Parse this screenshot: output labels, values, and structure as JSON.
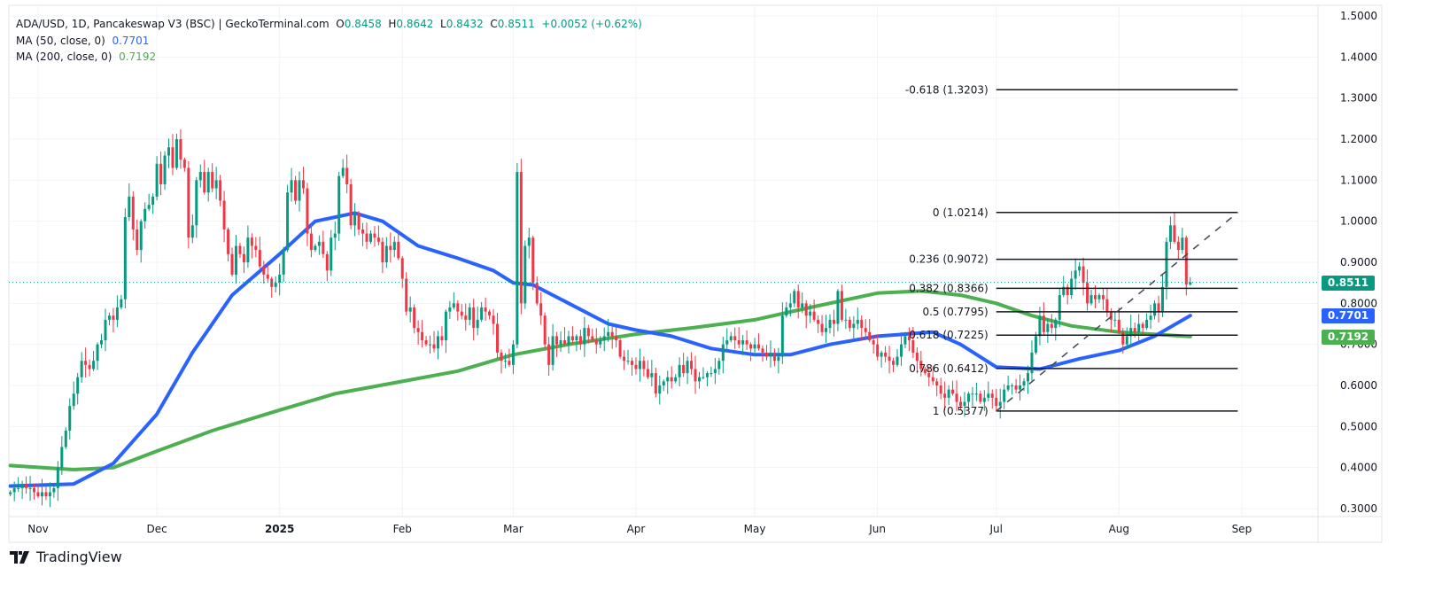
{
  "header": {
    "title": "ADA/USD, 1D, Pancakeswap V3 (BSC) | GeckoTerminal.com",
    "o_label": "O",
    "o": "0.8458",
    "h_label": "H",
    "h": "0.8642",
    "l_label": "L",
    "l": "0.8432",
    "c_label": "C",
    "c": "0.8511",
    "change": "+0.0052 (+0.62%)",
    "ma50_label": "MA (50, close, 0)",
    "ma50_value": "0.7701",
    "ma200_label": "MA (200, close, 0)",
    "ma200_value": "0.7192"
  },
  "branding": {
    "logo_text": "TradingView"
  },
  "colors": {
    "up": "#089981",
    "down": "#f23645",
    "ma50": "#2962ff",
    "ma200": "#4caf50",
    "fib": "#131722",
    "last_price": "#089981"
  },
  "price_badges": {
    "last": "0.8511",
    "ma50": "0.7701",
    "ma200": "0.7192"
  },
  "chart_data": {
    "type": "candlestick",
    "start_date": "2024-10-25",
    "last_candle": {
      "open": 0.8458,
      "high": 0.8642,
      "low": 0.8432,
      "close": 0.8511
    },
    "closes": [
      0.34,
      0.35,
      0.35,
      0.36,
      0.35,
      0.35,
      0.34,
      0.33,
      0.34,
      0.33,
      0.34,
      0.35,
      0.4,
      0.45,
      0.49,
      0.55,
      0.58,
      0.62,
      0.66,
      0.65,
      0.64,
      0.66,
      0.7,
      0.71,
      0.76,
      0.77,
      0.76,
      0.79,
      0.81,
      1.01,
      1.06,
      0.98,
      0.93,
      1.0,
      1.03,
      1.04,
      1.06,
      1.14,
      1.09,
      1.16,
      1.18,
      1.13,
      1.2,
      1.15,
      1.13,
      0.96,
      0.99,
      1.1,
      1.12,
      1.07,
      1.12,
      1.08,
      1.1,
      1.05,
      0.98,
      0.92,
      0.87,
      0.94,
      0.92,
      0.9,
      0.96,
      0.94,
      0.93,
      0.89,
      0.87,
      0.86,
      0.84,
      0.85,
      0.87,
      0.93,
      1.07,
      1.1,
      1.05,
      1.1,
      1.08,
      0.97,
      0.93,
      0.94,
      0.95,
      0.92,
      0.88,
      0.96,
      0.97,
      1.11,
      1.13,
      1.09,
      0.99,
      1.02,
      0.98,
      0.97,
      0.95,
      0.97,
      0.96,
      0.95,
      0.9,
      0.94,
      0.93,
      0.95,
      0.91,
      0.86,
      0.78,
      0.79,
      0.74,
      0.73,
      0.71,
      0.7,
      0.7,
      0.69,
      0.72,
      0.71,
      0.78,
      0.79,
      0.8,
      0.78,
      0.77,
      0.76,
      0.79,
      0.74,
      0.76,
      0.79,
      0.78,
      0.77,
      0.75,
      0.68,
      0.66,
      0.66,
      0.65,
      0.7,
      1.12,
      0.8,
      0.94,
      0.96,
      0.85,
      0.8,
      0.77,
      0.7,
      0.65,
      0.72,
      0.7,
      0.71,
      0.7,
      0.72,
      0.71,
      0.72,
      0.7,
      0.74,
      0.72,
      0.71,
      0.7,
      0.71,
      0.72,
      0.73,
      0.72,
      0.71,
      0.67,
      0.66,
      0.66,
      0.65,
      0.64,
      0.66,
      0.64,
      0.62,
      0.63,
      0.58,
      0.6,
      0.61,
      0.62,
      0.61,
      0.62,
      0.65,
      0.63,
      0.66,
      0.64,
      0.61,
      0.62,
      0.62,
      0.63,
      0.63,
      0.64,
      0.66,
      0.7,
      0.71,
      0.72,
      0.71,
      0.7,
      0.71,
      0.7,
      0.69,
      0.7,
      0.69,
      0.68,
      0.67,
      0.68,
      0.66,
      0.67,
      0.77,
      0.79,
      0.8,
      0.83,
      0.79,
      0.8,
      0.77,
      0.78,
      0.76,
      0.75,
      0.73,
      0.74,
      0.76,
      0.75,
      0.83,
      0.76,
      0.76,
      0.74,
      0.75,
      0.76,
      0.74,
      0.73,
      0.71,
      0.7,
      0.67,
      0.68,
      0.67,
      0.66,
      0.65,
      0.67,
      0.7,
      0.72,
      0.71,
      0.68,
      0.66,
      0.64,
      0.63,
      0.62,
      0.61,
      0.6,
      0.58,
      0.57,
      0.59,
      0.58,
      0.56,
      0.55,
      0.56,
      0.58,
      0.58,
      0.58,
      0.56,
      0.57,
      0.58,
      0.57,
      0.55,
      0.56,
      0.59,
      0.6,
      0.6,
      0.59,
      0.6,
      0.61,
      0.63,
      0.68,
      0.72,
      0.77,
      0.73,
      0.75,
      0.74,
      0.76,
      0.82,
      0.84,
      0.82,
      0.86,
      0.88,
      0.89,
      0.85,
      0.8,
      0.82,
      0.81,
      0.82,
      0.81,
      0.78,
      0.76,
      0.76,
      0.73,
      0.7,
      0.72,
      0.74,
      0.73,
      0.75,
      0.74,
      0.76,
      0.77,
      0.8,
      0.78,
      0.84,
      0.95,
      0.99,
      0.95,
      0.93,
      0.96,
      0.8458,
      0.8511
    ],
    "ma50": [
      [
        "2024-10-25",
        0.355
      ],
      [
        "2024-11-10",
        0.36
      ],
      [
        "2024-11-20",
        0.41
      ],
      [
        "2024-12-01",
        0.53
      ],
      [
        "2024-12-10",
        0.68
      ],
      [
        "2024-12-20",
        0.82
      ],
      [
        "2025-01-01",
        0.92
      ],
      [
        "2025-01-10",
        1.0
      ],
      [
        "2025-01-20",
        1.02
      ],
      [
        "2025-01-27",
        1.0
      ],
      [
        "2025-02-05",
        0.94
      ],
      [
        "2025-02-15",
        0.91
      ],
      [
        "2025-02-24",
        0.88
      ],
      [
        "2025-03-01",
        0.85
      ],
      [
        "2025-03-06",
        0.845
      ],
      [
        "2025-03-15",
        0.8
      ],
      [
        "2025-03-25",
        0.75
      ],
      [
        "2025-04-01",
        0.735
      ],
      [
        "2025-04-10",
        0.72
      ],
      [
        "2025-04-20",
        0.69
      ],
      [
        "2025-05-01",
        0.675
      ],
      [
        "2025-05-10",
        0.675
      ],
      [
        "2025-05-20",
        0.7
      ],
      [
        "2025-06-01",
        0.72
      ],
      [
        "2025-06-15",
        0.73
      ],
      [
        "2025-06-22",
        0.7
      ],
      [
        "2025-07-01",
        0.645
      ],
      [
        "2025-07-12",
        0.64
      ],
      [
        "2025-07-22",
        0.665
      ],
      [
        "2025-08-01",
        0.685
      ],
      [
        "2025-08-10",
        0.72
      ],
      [
        "2025-08-19",
        0.7701
      ]
    ],
    "ma200": [
      [
        "2024-10-25",
        0.405
      ],
      [
        "2024-11-10",
        0.395
      ],
      [
        "2024-11-20",
        0.4
      ],
      [
        "2024-12-01",
        0.44
      ],
      [
        "2024-12-15",
        0.49
      ],
      [
        "2025-01-01",
        0.54
      ],
      [
        "2025-01-15",
        0.58
      ],
      [
        "2025-02-01",
        0.61
      ],
      [
        "2025-02-15",
        0.635
      ],
      [
        "2025-03-01",
        0.675
      ],
      [
        "2025-03-15",
        0.7
      ],
      [
        "2025-04-01",
        0.725
      ],
      [
        "2025-04-15",
        0.74
      ],
      [
        "2025-05-01",
        0.76
      ],
      [
        "2025-05-15",
        0.79
      ],
      [
        "2025-06-01",
        0.825
      ],
      [
        "2025-06-12",
        0.83
      ],
      [
        "2025-06-22",
        0.82
      ],
      [
        "2025-07-01",
        0.8
      ],
      [
        "2025-07-10",
        0.77
      ],
      [
        "2025-07-20",
        0.745
      ],
      [
        "2025-08-01",
        0.73
      ],
      [
        "2025-08-19",
        0.7192
      ]
    ],
    "fibonacci": {
      "start_date": "2025-07-01",
      "end_date": "2025-08-31",
      "trend_from": [
        "2025-07-01",
        0.5377
      ],
      "trend_to": [
        "2025-08-31",
        1.0214
      ],
      "levels": [
        {
          "label": "-0.618 (1.3203)",
          "price": 1.3203
        },
        {
          "label": "0 (1.0214)",
          "price": 1.0214
        },
        {
          "label": "0.236 (0.9072)",
          "price": 0.9072
        },
        {
          "label": "0.382 (0.8366)",
          "price": 0.8366
        },
        {
          "label": "0.5 (0.7795)",
          "price": 0.7795
        },
        {
          "label": "0.618 (0.7225)",
          "price": 0.7225
        },
        {
          "label": "0.786 (0.6412)",
          "price": 0.6412
        },
        {
          "label": "1 (0.5377)",
          "price": 0.5377
        }
      ]
    },
    "ylim": [
      0.3,
      1.5
    ],
    "y_ticks": [
      "1.5000",
      "1.4000",
      "1.3000",
      "1.2000",
      "1.1000",
      "1.0000",
      "0.9000",
      "0.8000",
      "0.7000",
      "0.6000",
      "0.5000",
      "0.4000",
      "0.3000"
    ],
    "x_ticks": [
      {
        "label": "Nov",
        "date": "2024-11-01"
      },
      {
        "label": "Dec",
        "date": "2024-12-01"
      },
      {
        "label": "2025",
        "date": "2025-01-01",
        "bold": true
      },
      {
        "label": "Feb",
        "date": "2025-02-01"
      },
      {
        "label": "Mar",
        "date": "2025-03-01"
      },
      {
        "label": "Apr",
        "date": "2025-04-01"
      },
      {
        "label": "May",
        "date": "2025-05-01"
      },
      {
        "label": "Jun",
        "date": "2025-06-01"
      },
      {
        "label": "Jul",
        "date": "2025-07-01"
      },
      {
        "label": "Aug",
        "date": "2025-08-01"
      },
      {
        "label": "Sep",
        "date": "2025-09-01"
      }
    ],
    "grid": true
  }
}
